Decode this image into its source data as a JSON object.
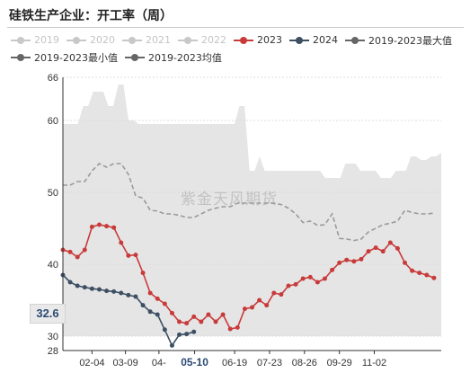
{
  "title": "硅铁生产企业：开工率（周）",
  "watermark": "紫金天风期货",
  "marker": "32.6",
  "colors": {
    "band": "#e5e5e5",
    "c2023": "#c93a3a",
    "c2024": "#3d4f63",
    "avg": "#9a9a9a",
    "legend_off": "#c8c8c8",
    "legend_max": "#666666",
    "legend_min": "#666666",
    "legend_avg": "#666666"
  },
  "legend": [
    {
      "label": "2019",
      "state": "off"
    },
    {
      "label": "2020",
      "state": "off"
    },
    {
      "label": "2021",
      "state": "off"
    },
    {
      "label": "2022",
      "state": "off"
    },
    {
      "label": "2023",
      "state": "on",
      "color_key": "c2023"
    },
    {
      "label": "2024",
      "state": "on",
      "color_key": "c2024"
    },
    {
      "label": "2019-2023最大值",
      "state": "on",
      "color_key": "legend_max"
    },
    {
      "label": "2019-2023最小值",
      "state": "on",
      "color_key": "legend_min"
    },
    {
      "label": "2019-2023均值",
      "state": "on",
      "color_key": "legend_avg"
    }
  ],
  "chart_data": {
    "type": "line",
    "title": "硅铁生产企业：开工率（周）",
    "y_ticks": [
      28,
      30,
      40,
      50,
      60,
      66
    ],
    "ylim": [
      28,
      66
    ],
    "x_range": [
      0,
      52
    ],
    "x_ticks": [
      {
        "label": "02-04",
        "x": 4.0
      },
      {
        "label": "03-09",
        "x": 8.6
      },
      {
        "label": "04-",
        "x": 13.2
      },
      {
        "label": "05-10",
        "x": 18.1,
        "highlight": true
      },
      {
        "label": "06-19",
        "x": 23.6
      },
      {
        "label": "07-23",
        "x": 28.4
      },
      {
        "label": "08-26",
        "x": 33.2
      },
      {
        "label": "09-29",
        "x": 38.0
      },
      {
        "label": "11-02",
        "x": 42.8
      }
    ],
    "band_top": [
      59.5,
      59.5,
      59.5,
      59.5,
      62,
      62,
      64,
      64,
      64,
      62,
      62,
      65,
      65,
      60,
      60,
      59.5,
      59.5,
      59.5,
      59.5,
      59.5,
      59.5,
      59.5,
      59.5,
      59.5,
      59.5,
      59.5,
      59.5,
      59.5,
      59.5,
      59.5,
      59.5,
      59.5,
      59.5,
      59.5,
      59.5,
      62,
      62,
      53,
      53,
      55,
      53,
      53,
      53,
      53,
      53,
      53,
      53,
      53,
      53,
      53,
      53,
      53,
      52,
      52,
      52,
      52,
      54,
      54,
      54,
      53,
      53,
      53,
      53,
      52,
      52,
      52,
      53,
      53,
      53,
      55,
      55,
      54.5,
      54.5,
      55,
      55,
      55.5
    ],
    "band_bottom": [
      30,
      30,
      30,
      30,
      30,
      30,
      30,
      30,
      30,
      30,
      30,
      30,
      30,
      30,
      30,
      30,
      30,
      30,
      30,
      30,
      30,
      30,
      30,
      30,
      30,
      30,
      30,
      30,
      30,
      30,
      30,
      30,
      30,
      30,
      30,
      30,
      30,
      30,
      30,
      30,
      30,
      30,
      30,
      30,
      30,
      30,
      30,
      30,
      30,
      30,
      30,
      30,
      30,
      30,
      30,
      30,
      30,
      30,
      30,
      30,
      30,
      30,
      30,
      30,
      30,
      30,
      30,
      30,
      30,
      30,
      30,
      30,
      30,
      30,
      30,
      30
    ],
    "series": [
      {
        "name": "2023",
        "color_key": "c2023",
        "x": [
          0,
          1,
          2,
          3,
          4,
          5,
          6,
          7,
          8,
          9,
          10,
          11,
          12,
          13,
          14,
          15,
          16,
          17,
          18,
          19,
          20,
          21,
          22,
          23,
          24,
          25,
          26,
          27,
          28,
          29,
          30,
          31,
          32,
          33,
          34,
          35,
          36,
          37,
          38,
          39,
          40,
          41,
          42,
          43,
          44,
          45,
          46,
          47,
          48,
          49,
          50,
          51
        ],
        "values": [
          42,
          41.7,
          41,
          42,
          45.2,
          45.5,
          45.3,
          45.1,
          43,
          41.2,
          41.3,
          38.8,
          36,
          35.2,
          34.5,
          33.2,
          32,
          31.8,
          32.7,
          32,
          33,
          32,
          33,
          31,
          31.2,
          33.8,
          34,
          35,
          34.3,
          36,
          35.8,
          37,
          37.2,
          38,
          38.2,
          37.5,
          38,
          39.2,
          40.2,
          40.6,
          40.4,
          40.7,
          41.8,
          42.3,
          41.8,
          43,
          42.2,
          40.2,
          39.1,
          38.8,
          38.5,
          38.1
        ]
      },
      {
        "name": "2024",
        "color_key": "c2024",
        "x": [
          0,
          1,
          2,
          3,
          4,
          5,
          6,
          7,
          8,
          9,
          10,
          11,
          12,
          13,
          14,
          15,
          16,
          17,
          18
        ],
        "values": [
          38.5,
          37.5,
          37,
          36.8,
          36.6,
          36.5,
          36.3,
          36.2,
          36,
          35.7,
          35.5,
          34.3,
          33.4,
          33,
          30.9,
          28.7,
          30.2,
          30.3,
          30.6
        ]
      }
    ],
    "avg_series": {
      "name": "2019-2023均值",
      "color_key": "avg",
      "x": [
        0,
        1,
        2,
        3,
        4,
        5,
        6,
        7,
        8,
        9,
        10,
        11,
        12,
        13,
        14,
        15,
        16,
        17,
        18,
        19,
        20,
        21,
        22,
        23,
        24,
        25,
        26,
        27,
        28,
        29,
        30,
        31,
        32,
        33,
        34,
        35,
        36,
        37,
        38,
        39,
        40,
        41,
        42,
        43,
        44,
        45,
        46,
        47,
        48,
        49,
        50,
        51
      ],
      "values": [
        51,
        51,
        51.5,
        51.5,
        53,
        54,
        53.5,
        54,
        54,
        52.5,
        49.5,
        49.2,
        47.5,
        47.4,
        47,
        47,
        46.8,
        46.5,
        46.5,
        47,
        47.5,
        47.8,
        48,
        48,
        48.5,
        48.5,
        48.5,
        48.5,
        48.5,
        48.5,
        48.3,
        47.8,
        47,
        45.8,
        46,
        45.4,
        45.5,
        47,
        43.6,
        43.5,
        43.3,
        43.5,
        44.5,
        45,
        45.5,
        45.7,
        46,
        47.5,
        47.2,
        47,
        47,
        47.1
      ]
    }
  }
}
